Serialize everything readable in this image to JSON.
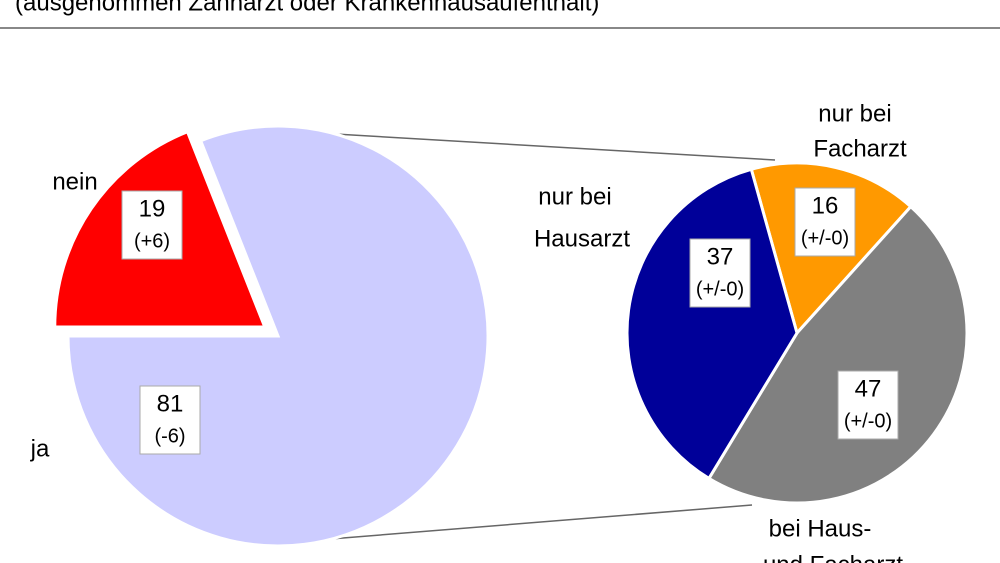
{
  "header": {
    "subtitle": "(ausgenommen Zahnarzt oder Krankenhausaufenthalt)"
  },
  "chart_data": [
    {
      "type": "pie",
      "categories": [
        [
          "nein"
        ],
        [
          "ja"
        ]
      ],
      "values": [
        19,
        81
      ],
      "changes": [
        "(+6)",
        "(-6)"
      ],
      "colors": [
        "#ff0000",
        "#ccccff"
      ]
    },
    {
      "type": "pie",
      "categories": [
        [
          "nur bei",
          "Facharzt"
        ],
        [
          "bei Haus-",
          "und Facharzt"
        ],
        [
          "nur bei",
          "Hausarzt"
        ]
      ],
      "values": [
        16,
        47,
        37
      ],
      "changes": [
        "(+/-0)",
        "(+/-0)",
        "(+/-0)"
      ],
      "colors": [
        "#ff9900",
        "#808080",
        "#000099"
      ]
    }
  ]
}
